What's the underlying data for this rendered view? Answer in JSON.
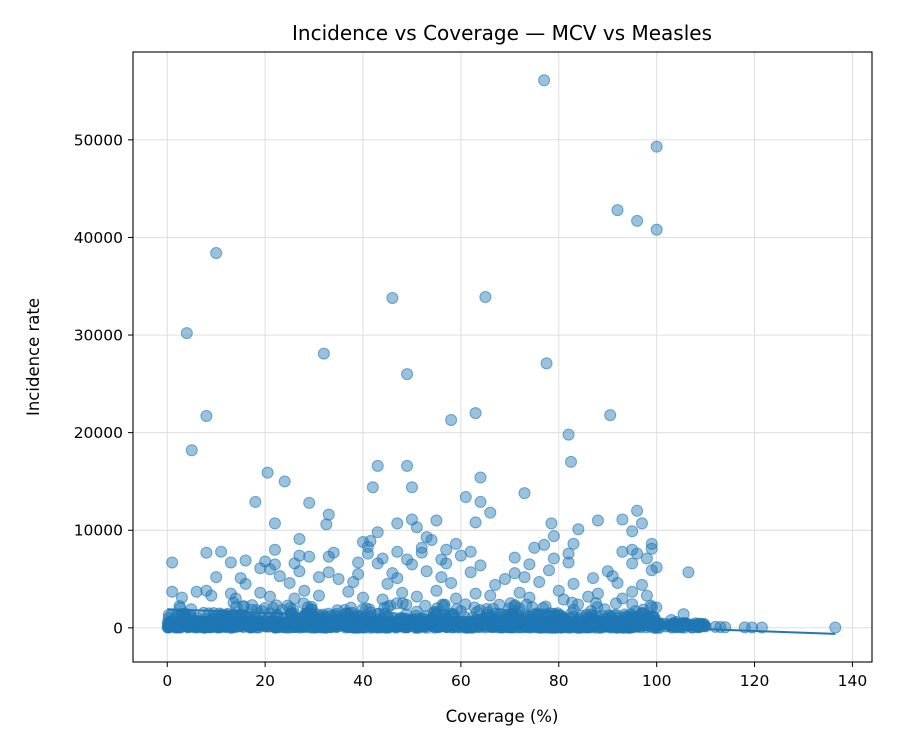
{
  "chart_data": {
    "type": "scatter",
    "title": "Incidence vs Coverage — MCV vs Measles",
    "xlabel": "Coverage (%)",
    "ylabel": "Incidence rate",
    "xlim": [
      -7,
      144
    ],
    "ylim": [
      -3500,
      59000
    ],
    "xticks": [
      0,
      20,
      40,
      60,
      80,
      100,
      120,
      140
    ],
    "yticks": [
      0,
      10000,
      20000,
      30000,
      40000,
      50000
    ],
    "grid": true,
    "colors": {
      "points": "#1f77b4",
      "trend": "#1f77b4"
    },
    "trend_line": {
      "x": [
        0,
        136.5
      ],
      "y": [
        1900,
        -620
      ]
    },
    "points": [
      [
        77,
        56100
      ],
      [
        100,
        49300
      ],
      [
        92,
        42800
      ],
      [
        96,
        41700
      ],
      [
        100,
        40800
      ],
      [
        10,
        38400
      ],
      [
        46,
        33800
      ],
      [
        65,
        33900
      ],
      [
        4,
        30200
      ],
      [
        32,
        28100
      ],
      [
        77.5,
        27100
      ],
      [
        49,
        26000
      ],
      [
        63,
        22000
      ],
      [
        8,
        21700
      ],
      [
        58,
        21300
      ],
      [
        90.5,
        21800
      ],
      [
        82,
        19800
      ],
      [
        5,
        18200
      ],
      [
        82.5,
        17000
      ],
      [
        43,
        16600
      ],
      [
        49,
        16600
      ],
      [
        20.5,
        15900
      ],
      [
        64,
        15400
      ],
      [
        24,
        15000
      ],
      [
        42,
        14400
      ],
      [
        50,
        14400
      ],
      [
        73,
        13800
      ],
      [
        61,
        13400
      ],
      [
        18,
        12900
      ],
      [
        29,
        12800
      ],
      [
        64,
        12900
      ],
      [
        96,
        12000
      ],
      [
        33,
        11600
      ],
      [
        66,
        11800
      ],
      [
        50,
        11100
      ],
      [
        55,
        11000
      ],
      [
        88,
        11000
      ],
      [
        93,
        11100
      ],
      [
        22,
        10700
      ],
      [
        32.5,
        10600
      ],
      [
        47,
        10700
      ],
      [
        63,
        10800
      ],
      [
        78.5,
        10700
      ],
      [
        97,
        10700
      ],
      [
        51,
        10300
      ],
      [
        84,
        10100
      ],
      [
        95,
        9900
      ],
      [
        43,
        9800
      ],
      [
        53,
        9300
      ],
      [
        79,
        9400
      ],
      [
        27,
        9100
      ],
      [
        40,
        8800
      ],
      [
        41.5,
        8900
      ],
      [
        54,
        9000
      ],
      [
        59,
        8600
      ],
      [
        77,
        8500
      ],
      [
        83,
        8600
      ],
      [
        99,
        8600
      ],
      [
        41,
        8300
      ],
      [
        52,
        8200
      ],
      [
        57,
        8000
      ],
      [
        75,
        8200
      ],
      [
        95,
        8000
      ],
      [
        99,
        8100
      ],
      [
        8,
        7700
      ],
      [
        11,
        7800
      ],
      [
        22,
        8000
      ],
      [
        34,
        7700
      ],
      [
        41,
        7600
      ],
      [
        47,
        7800
      ],
      [
        52,
        7700
      ],
      [
        62,
        7800
      ],
      [
        82,
        7600
      ],
      [
        93,
        7800
      ],
      [
        96,
        7600
      ],
      [
        27,
        7400
      ],
      [
        29,
        7300
      ],
      [
        33,
        7300
      ],
      [
        44,
        7100
      ],
      [
        49,
        7000
      ],
      [
        56,
        7000
      ],
      [
        60,
        7400
      ],
      [
        71,
        7200
      ],
      [
        79,
        7100
      ],
      [
        98,
        7100
      ],
      [
        1,
        6700
      ],
      [
        13,
        6700
      ],
      [
        16,
        6900
      ],
      [
        20,
        6800
      ],
      [
        22,
        6500
      ],
      [
        26,
        6600
      ],
      [
        39,
        6700
      ],
      [
        43,
        6600
      ],
      [
        50,
        6500
      ],
      [
        57,
        6600
      ],
      [
        64,
        6400
      ],
      [
        74,
        6500
      ],
      [
        82,
        6700
      ],
      [
        95,
        6600
      ],
      [
        100,
        6200
      ],
      [
        19,
        6100
      ],
      [
        21,
        6000
      ],
      [
        27,
        5800
      ],
      [
        33,
        5700
      ],
      [
        39,
        5500
      ],
      [
        46,
        5600
      ],
      [
        53,
        5800
      ],
      [
        62,
        5700
      ],
      [
        71,
        5600
      ],
      [
        78,
        5900
      ],
      [
        90,
        5800
      ],
      [
        99,
        5900
      ],
      [
        106.5,
        5700
      ],
      [
        10,
        5200
      ],
      [
        15,
        5100
      ],
      [
        23,
        5300
      ],
      [
        31,
        5200
      ],
      [
        35,
        5000
      ],
      [
        47,
        5100
      ],
      [
        56,
        5200
      ],
      [
        69,
        5000
      ],
      [
        73,
        5200
      ],
      [
        87,
        5100
      ],
      [
        91,
        5300
      ],
      [
        16,
        4500
      ],
      [
        25,
        4600
      ],
      [
        38,
        4700
      ],
      [
        45,
        4500
      ],
      [
        58,
        4600
      ],
      [
        67,
        4400
      ],
      [
        76,
        4700
      ],
      [
        83,
        4500
      ],
      [
        92,
        4600
      ],
      [
        97,
        4400
      ],
      [
        6,
        3700
      ],
      [
        8,
        3800
      ],
      [
        13,
        3500
      ],
      [
        19,
        3600
      ],
      [
        28,
        3800
      ],
      [
        37,
        3700
      ],
      [
        48,
        3600
      ],
      [
        55,
        3800
      ],
      [
        63,
        3500
      ],
      [
        72,
        3600
      ],
      [
        80,
        3800
      ],
      [
        88,
        3500
      ],
      [
        95,
        3700
      ],
      [
        1,
        3700
      ],
      [
        3,
        3100
      ],
      [
        9,
        3300
      ],
      [
        14,
        3000
      ],
      [
        21,
        3200
      ],
      [
        26,
        3000
      ],
      [
        31,
        3300
      ],
      [
        40,
        3100
      ],
      [
        44,
        2900
      ],
      [
        51,
        3200
      ],
      [
        59,
        3000
      ],
      [
        66,
        3300
      ],
      [
        74,
        3100
      ],
      [
        81,
        2900
      ],
      [
        86,
        3200
      ],
      [
        93,
        3000
      ],
      [
        98,
        3300
      ],
      [
        105.5,
        1400
      ],
      [
        103,
        800
      ],
      [
        104,
        600
      ],
      [
        106,
        400
      ],
      [
        108,
        300
      ],
      [
        109,
        200
      ],
      [
        110,
        150
      ],
      [
        112,
        100
      ],
      [
        113,
        80
      ],
      [
        114,
        60
      ],
      [
        118,
        50
      ],
      [
        119.5,
        40
      ],
      [
        121.5,
        30
      ],
      [
        136.5,
        30
      ]
    ]
  }
}
